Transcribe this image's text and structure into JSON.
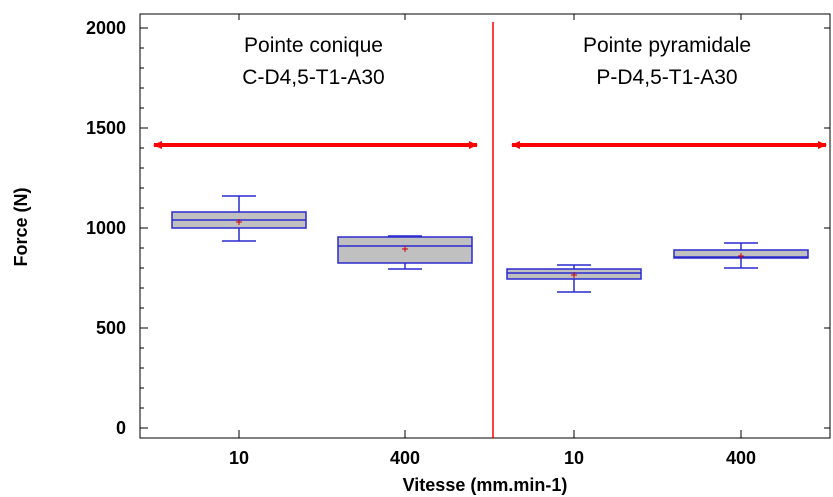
{
  "chart_data": {
    "type": "box",
    "xlabel": "Vitesse (mm.min-1)",
    "ylabel": "Force (N)",
    "ylim": [
      -50,
      2070
    ],
    "yticks": [
      0,
      500,
      1000,
      1500,
      2000
    ],
    "grid": false,
    "groups": [
      {
        "title": "Pointe conique",
        "subtitle": "C-D4,5-T1-A30"
      },
      {
        "title": "Pointe pyramidale",
        "subtitle": "P-D4,5-T1-A30"
      }
    ],
    "categories": [
      "10",
      "400",
      "10",
      "400"
    ],
    "boxes": [
      {
        "label": "10",
        "min": 935,
        "q1": 1000,
        "median": 1040,
        "q3": 1080,
        "max": 1160,
        "mean": 1030
      },
      {
        "label": "400",
        "min": 795,
        "q1": 825,
        "median": 910,
        "q3": 955,
        "max": 960,
        "mean": 895
      },
      {
        "label": "10",
        "min": 680,
        "q1": 745,
        "median": 775,
        "q3": 795,
        "max": 815,
        "mean": 765
      },
      {
        "label": "400",
        "min": 800,
        "q1": 850,
        "median": 855,
        "q3": 890,
        "max": 925,
        "mean": 860
      }
    ],
    "colors": {
      "box_fill": "#c0c0c0",
      "box_line": "#2a2acf",
      "mean_marker": "#cc0000",
      "annotation": "#ff0000",
      "divider": "#ff0000"
    }
  }
}
